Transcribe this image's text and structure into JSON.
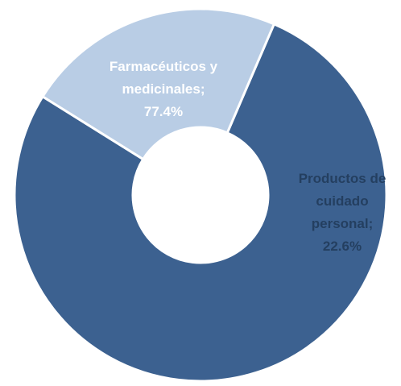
{
  "chart_data": {
    "type": "pie",
    "variant": "donut",
    "title": "",
    "slices": [
      {
        "label_lines": [
          "Farmacéuticos y",
          "medicinales;",
          "77.4%"
        ],
        "category": "Farmacéuticos y medicinales",
        "value": 77.4,
        "color": "#3c6190"
      },
      {
        "label_lines": [
          "Productos de",
          "cuidado",
          "personal;",
          "22.6%"
        ],
        "category": "Productos de cuidado personal",
        "value": 22.6,
        "color": "#b9cde5"
      }
    ],
    "legend": "none"
  }
}
